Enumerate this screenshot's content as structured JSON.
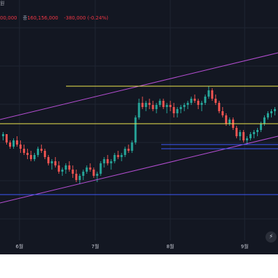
{
  "header": {
    "title_fragment": "원",
    "open_fragment": "00,000",
    "close_label": "종",
    "close_value": "160,156,000",
    "change_value": "-380,000",
    "change_pct": "(-0.24%)"
  },
  "x_axis": {
    "labels": [
      "6월",
      "7월",
      "8월",
      "9월"
    ]
  },
  "colors": {
    "background": "#131722",
    "up": "#26a69a",
    "down": "#ef5350",
    "trend_channel": "#b84fd6",
    "horizontal_yellow": "#f2e94e",
    "horizontal_blue": "#3d5afe",
    "grid": "#1f2433"
  },
  "icons": {
    "quick_action": "lightning-icon"
  },
  "chart_data": {
    "type": "candlestick",
    "x": [
      "6월",
      "7월",
      "8월",
      "9월"
    ],
    "series": [
      {
        "values": [
          [
            0.88,
            0.9,
            0.86,
            0.89
          ],
          [
            0.89,
            0.89,
            0.84,
            0.85
          ],
          [
            0.85,
            0.86,
            0.82,
            0.83
          ],
          [
            0.83,
            0.87,
            0.82,
            0.86
          ],
          [
            0.86,
            0.88,
            0.83,
            0.84
          ],
          [
            0.84,
            0.86,
            0.8,
            0.82
          ],
          [
            0.82,
            0.84,
            0.79,
            0.8
          ],
          [
            0.8,
            0.82,
            0.77,
            0.79
          ],
          [
            0.79,
            0.81,
            0.76,
            0.77
          ],
          [
            0.77,
            0.8,
            0.76,
            0.79
          ],
          [
            0.79,
            0.83,
            0.78,
            0.82
          ],
          [
            0.82,
            0.84,
            0.8,
            0.81
          ],
          [
            0.81,
            0.82,
            0.77,
            0.78
          ],
          [
            0.78,
            0.79,
            0.74,
            0.75
          ],
          [
            0.75,
            0.77,
            0.72,
            0.76
          ],
          [
            0.76,
            0.78,
            0.73,
            0.74
          ],
          [
            0.74,
            0.76,
            0.7,
            0.71
          ],
          [
            0.71,
            0.73,
            0.69,
            0.72
          ],
          [
            0.72,
            0.75,
            0.7,
            0.74
          ],
          [
            0.74,
            0.76,
            0.71,
            0.72
          ],
          [
            0.72,
            0.74,
            0.68,
            0.7
          ],
          [
            0.7,
            0.72,
            0.66,
            0.67
          ],
          [
            0.67,
            0.7,
            0.65,
            0.69
          ],
          [
            0.69,
            0.72,
            0.67,
            0.71
          ],
          [
            0.71,
            0.74,
            0.7,
            0.73
          ],
          [
            0.73,
            0.75,
            0.71,
            0.72
          ],
          [
            0.72,
            0.73,
            0.68,
            0.69
          ],
          [
            0.69,
            0.71,
            0.66,
            0.7
          ],
          [
            0.7,
            0.76,
            0.69,
            0.75
          ],
          [
            0.75,
            0.78,
            0.73,
            0.77
          ],
          [
            0.77,
            0.79,
            0.74,
            0.75
          ],
          [
            0.75,
            0.77,
            0.72,
            0.76
          ],
          [
            0.76,
            0.8,
            0.75,
            0.79
          ],
          [
            0.79,
            0.81,
            0.77,
            0.78
          ],
          [
            0.78,
            0.8,
            0.76,
            0.79
          ],
          [
            0.79,
            0.83,
            0.78,
            0.82
          ],
          [
            0.82,
            0.84,
            0.8,
            0.81
          ],
          [
            0.81,
            0.86,
            0.8,
            0.85
          ],
          [
            0.85,
            0.98,
            0.84,
            0.97
          ],
          [
            0.97,
            1.06,
            0.96,
            1.04
          ],
          [
            1.04,
            1.07,
            1.01,
            1.02
          ],
          [
            1.02,
            1.05,
            1.0,
            1.04
          ],
          [
            1.04,
            1.06,
            1.01,
            1.03
          ],
          [
            1.03,
            1.05,
            1.0,
            1.01
          ],
          [
            1.01,
            1.04,
            0.99,
            1.03
          ],
          [
            1.03,
            1.06,
            1.02,
            1.05
          ],
          [
            1.05,
            1.06,
            1.01,
            1.02
          ],
          [
            1.02,
            1.04,
            0.99,
            1.03
          ],
          [
            1.03,
            1.05,
            1.0,
            1.02
          ],
          [
            1.02,
            1.04,
            0.97,
            0.99
          ],
          [
            0.99,
            1.02,
            0.97,
            1.01
          ],
          [
            1.01,
            1.03,
            0.99,
            1.02
          ],
          [
            1.02,
            1.04,
            1.0,
            1.03
          ],
          [
            1.03,
            1.05,
            1.01,
            1.04
          ],
          [
            1.04,
            1.07,
            1.03,
            1.06
          ],
          [
            1.06,
            1.08,
            1.04,
            1.05
          ],
          [
            1.05,
            1.06,
            1.01,
            1.03
          ],
          [
            1.03,
            1.05,
            1.0,
            1.04
          ],
          [
            1.04,
            1.08,
            1.03,
            1.07
          ],
          [
            1.07,
            1.12,
            1.06,
            1.1
          ],
          [
            1.1,
            1.11,
            1.05,
            1.06
          ],
          [
            1.06,
            1.08,
            1.03,
            1.04
          ],
          [
            1.04,
            1.05,
            0.99,
            1.0
          ],
          [
            1.0,
            1.02,
            0.97,
            0.98
          ],
          [
            0.98,
            0.99,
            0.93,
            0.94
          ],
          [
            0.94,
            0.97,
            0.93,
            0.96
          ],
          [
            0.96,
            0.97,
            0.91,
            0.92
          ],
          [
            0.92,
            0.93,
            0.87,
            0.88
          ],
          [
            0.88,
            0.91,
            0.86,
            0.9
          ],
          [
            0.9,
            0.91,
            0.85,
            0.86
          ],
          [
            0.86,
            0.88,
            0.84,
            0.87
          ],
          [
            0.87,
            0.9,
            0.86,
            0.89
          ],
          [
            0.89,
            0.91,
            0.87,
            0.9
          ],
          [
            0.9,
            0.92,
            0.88,
            0.91
          ],
          [
            0.91,
            0.95,
            0.9,
            0.94
          ],
          [
            0.94,
            0.98,
            0.93,
            0.97
          ],
          [
            0.97,
            1.0,
            0.96,
            0.99
          ],
          [
            0.99,
            1.01,
            0.97,
            1.0
          ],
          [
            1.0,
            1.02,
            0.98,
            1.01
          ]
        ]
      }
    ],
    "horizontal_levels": [
      {
        "color": "yellow",
        "value": 1.12
      },
      {
        "color": "yellow",
        "value": 0.94
      },
      {
        "color": "blue",
        "value": 0.84
      },
      {
        "color": "blue",
        "value": 0.6
      },
      {
        "color": "blue",
        "value": 0.82
      }
    ],
    "trend_channel": {
      "upper": [
        [
          0,
          0.96
        ],
        [
          1.0,
          1.28
        ]
      ],
      "lower": [
        [
          0,
          0.56
        ],
        [
          1.0,
          0.88
        ]
      ]
    },
    "ylim": [
      0.4,
      1.4
    ],
    "grid": true,
    "legend": "none"
  }
}
